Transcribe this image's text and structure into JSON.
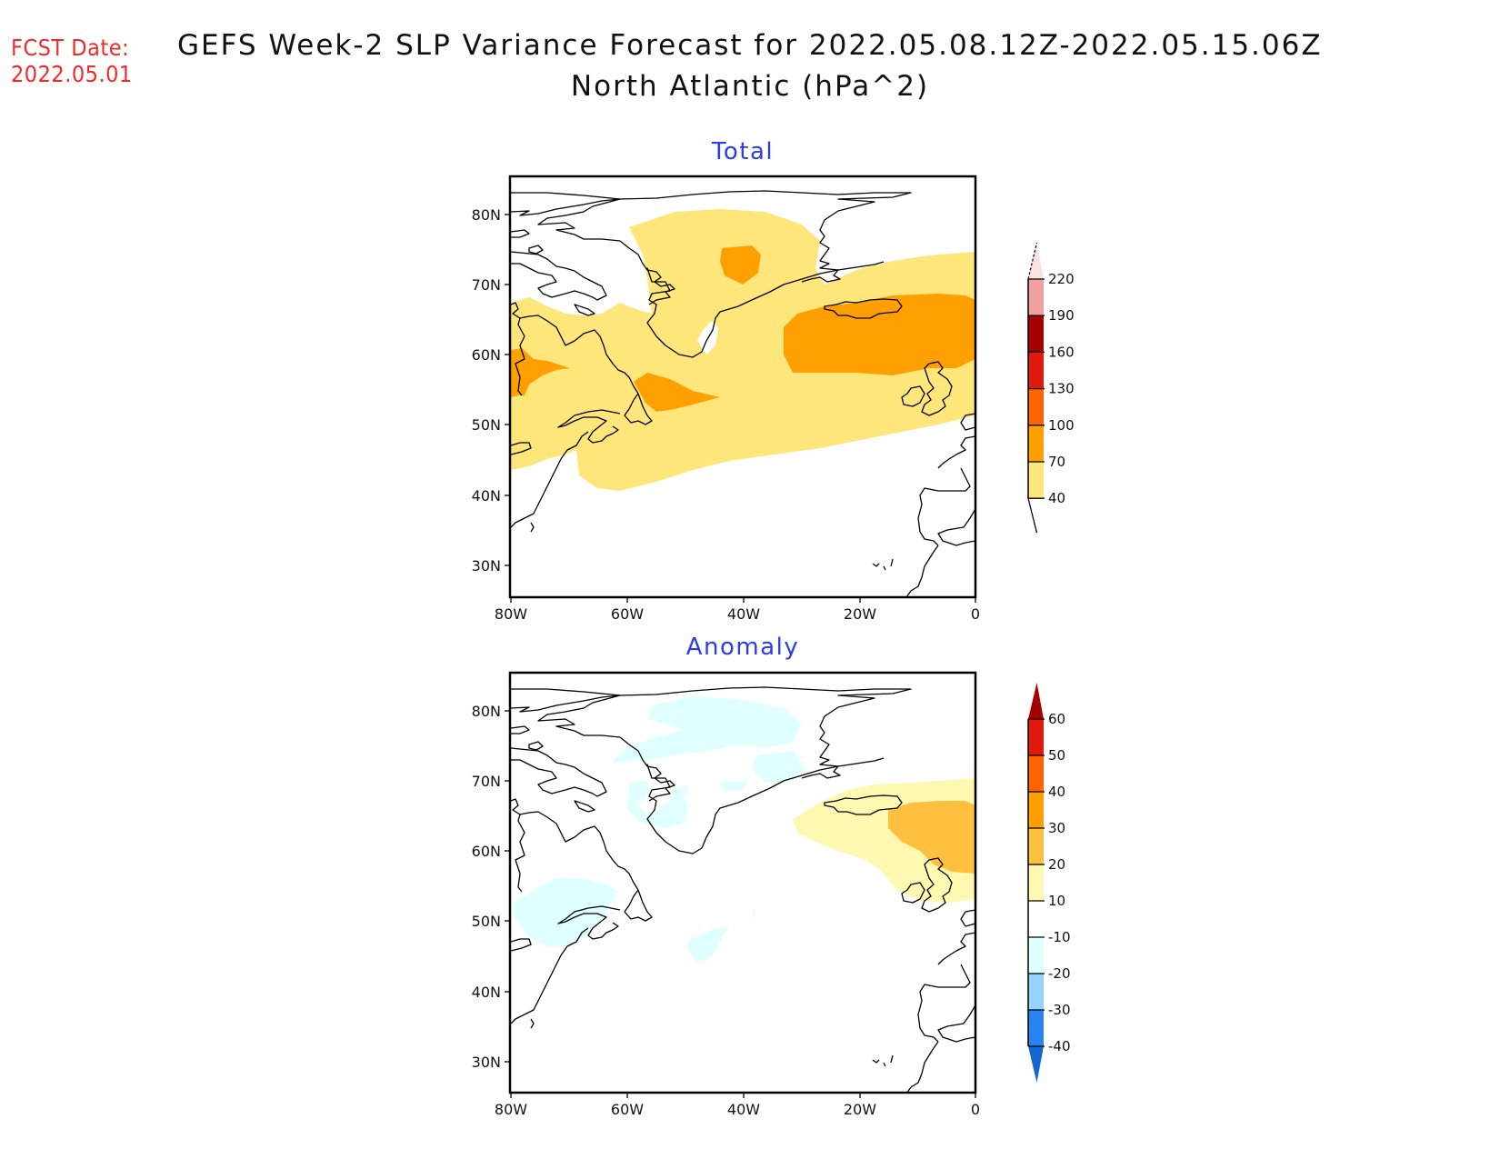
{
  "header": {
    "fcst_label": "FCST Date:",
    "fcst_date": "2022.05.01",
    "title_line1": "GEFS Week-2 SLP Variance Forecast for 2022.05.08.12Z-2022.05.15.06Z",
    "title_line2": "North Atlantic (hPa^2)"
  },
  "colors": {
    "title_text": "#111111",
    "fcst_text": "#ef2b2b",
    "panel_title": "#2b3cf0"
  },
  "axes": {
    "lat_ticks": [
      "80N",
      "70N",
      "60N",
      "50N",
      "40N",
      "30N"
    ],
    "lon_ticks": [
      "80W",
      "60W",
      "40W",
      "20W",
      "0"
    ]
  },
  "panels": [
    {
      "title": "Total",
      "legend": {
        "labels": [
          "220",
          "190",
          "160",
          "130",
          "100",
          "70",
          "40"
        ],
        "colors": [
          "#fde0e0",
          "#f2a0a0",
          "#a50000",
          "#e01a0a",
          "#ff6400",
          "#ffa000",
          "#fee67a"
        ],
        "over_color": "#fde0e0"
      }
    },
    {
      "title": "Anomaly",
      "legend": {
        "labels": [
          "60",
          "50",
          "40",
          "30",
          "20",
          "10",
          "-10",
          "-20",
          "-30",
          "-40"
        ],
        "colors": [
          "#a50000",
          "#e01a0a",
          "#ff6400",
          "#ffa000",
          "#ffc040",
          "#fff8b0",
          "#ffffff",
          "#e0ffff",
          "#96d2fa",
          "#2882f0",
          "#1464d2"
        ]
      }
    }
  ]
}
